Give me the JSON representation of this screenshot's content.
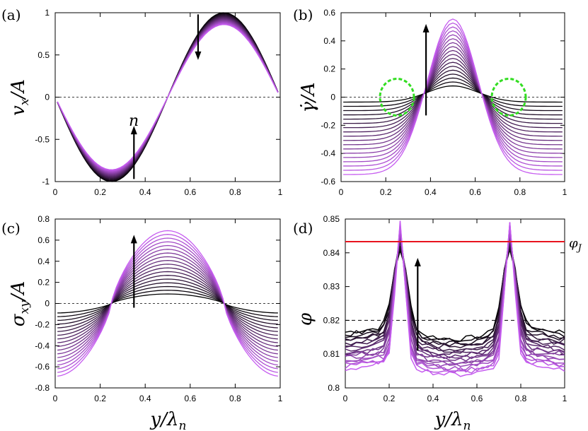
{
  "figure": {
    "panel_labels": [
      "(a)",
      "(b)",
      "(c)",
      "(d)"
    ],
    "xlabel": "y/λ",
    "xlabel_sub": "n",
    "arrow_label": "n",
    "phi_j_label": "φ",
    "phi_j_sub": "J"
  },
  "colors": {
    "start": "#000000",
    "end": "#c65cf0",
    "jamming": "#e8141e",
    "circle": "#33dd22"
  },
  "chart_data": [
    {
      "type": "line",
      "panel": "(a)",
      "ylabel": "v",
      "ylabel_sub": "x",
      "ylabel_tail": "/A",
      "xlim": [
        0,
        1
      ],
      "ylim": [
        -1,
        1
      ],
      "xticks": [
        "0",
        "0.2",
        "0.4",
        "0.6",
        "0.8",
        "1"
      ],
      "yticks": [
        "-1",
        "-0.5",
        "0",
        "0.5",
        "1"
      ],
      "reference_line": 0,
      "series_count": 18,
      "model": "v = -A_k·sin(2πy)",
      "amplitude_range": [
        1.0,
        0.86
      ],
      "x_range": [
        0.01,
        0.99
      ]
    },
    {
      "type": "line",
      "panel": "(b)",
      "ylabel": "γ̇",
      "ylabel_tail": "/A",
      "xlim": [
        0,
        1
      ],
      "ylim": [
        -0.6,
        0.6
      ],
      "xticks": [
        "0",
        "0.2",
        "0.4",
        "0.6",
        "0.8",
        "1"
      ],
      "yticks": [
        "-0.6",
        "-0.4",
        "-0.2",
        "0",
        "0.2",
        "0.4",
        "0.6"
      ],
      "reference_line": 0,
      "series_count": 18,
      "model": "γ̇ = c_k + b_k·exp(-((y-0.5)/0.15)²)",
      "peak_range": [
        0.08,
        0.555
      ],
      "baseline_range": [
        -0.035,
        -0.55
      ],
      "highlight_circles_x": [
        0.25,
        0.75
      ],
      "highlight_circle_y": 0.0
    },
    {
      "type": "line",
      "panel": "(c)",
      "ylabel": "σ",
      "ylabel_sub": "xy",
      "ylabel_tail": "/A",
      "xlim": [
        0,
        1
      ],
      "ylim": [
        -0.8,
        0.8
      ],
      "xticks": [
        "0",
        "0.2",
        "0.4",
        "0.6",
        "0.8",
        "1"
      ],
      "yticks": [
        "-0.8",
        "-0.6",
        "-0.4",
        "-0.2",
        "0",
        "0.2",
        "0.4",
        "0.6",
        "0.8"
      ],
      "reference_line": 0,
      "series_count": 18,
      "model": "σ = -B_k·cos(2πy) flattened",
      "amplitude_range": [
        0.09,
        0.69
      ],
      "x_range": [
        0.01,
        0.99
      ]
    },
    {
      "type": "line",
      "panel": "(d)",
      "ylabel": "φ",
      "xlim": [
        0,
        1
      ],
      "ylim": [
        0.8,
        0.85
      ],
      "xticks": [
        "0",
        "0.2",
        "0.4",
        "0.6",
        "0.8",
        "1"
      ],
      "yticks": [
        "0.8",
        "0.81",
        "0.82",
        "0.83",
        "0.84",
        "0.85"
      ],
      "reference_line": 0.82,
      "jamming_line": 0.8433,
      "series_count": 18,
      "model": "two peaks at y=0.25 and y=0.75 above a trough",
      "peak_range": [
        0.841,
        0.849
      ],
      "trough_range": [
        0.8145,
        0.804
      ]
    }
  ]
}
